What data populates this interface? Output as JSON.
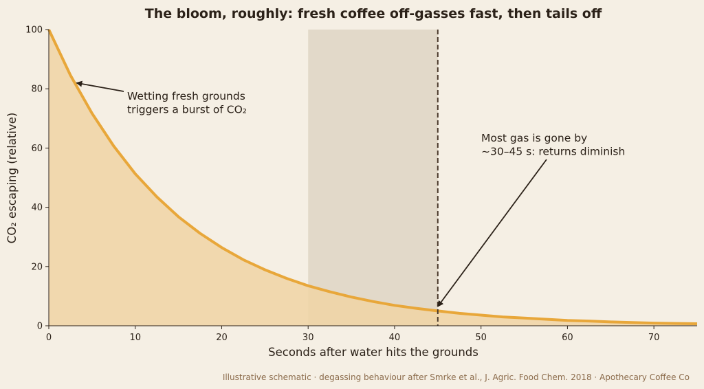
{
  "chart_data": {
    "type": "area",
    "title": "The bloom, roughly: fresh coffee off-gasses fast, then tails off",
    "xlabel": "Seconds after water hits the grounds",
    "ylabel": "CO₂ escaping (relative)",
    "xlim": [
      0,
      75
    ],
    "ylim": [
      0,
      100
    ],
    "xticks": [
      0,
      10,
      20,
      30,
      40,
      50,
      60,
      70
    ],
    "yticks": [
      0,
      20,
      40,
      60,
      80,
      100
    ],
    "grid": false,
    "series": [
      {
        "x": [
          0,
          2.5,
          5,
          7.5,
          10,
          12.5,
          15,
          17.5,
          20,
          22.5,
          25,
          27.5,
          30,
          32.5,
          35,
          37.5,
          40,
          42.5,
          45,
          47.5,
          50,
          52.5,
          55,
          57.5,
          60,
          62.5,
          65,
          67.5,
          70,
          72.5,
          75
        ],
        "y": [
          100,
          84.6,
          71.7,
          60.7,
          51.3,
          43.5,
          36.8,
          31.2,
          26.4,
          22.3,
          18.9,
          16.0,
          13.5,
          11.5,
          9.7,
          8.2,
          6.9,
          5.9,
          5.0,
          4.2,
          3.6,
          3.0,
          2.6,
          2.2,
          1.8,
          1.6,
          1.3,
          1.1,
          0.9,
          0.8,
          0.7
        ],
        "color": "#e8a73a",
        "fill": "#f0d4a4"
      }
    ],
    "shaded_region": {
      "x_start": 30,
      "x_end": 45,
      "color": "#d6c9b8"
    },
    "vertical_line": {
      "x": 45,
      "style": "dashed",
      "color": "#4a3a2c"
    },
    "annotations": [
      {
        "lines": [
          "Wetting fresh grounds",
          "triggers a burst of CO₂"
        ],
        "arrow_to": [
          3.2,
          82
        ]
      },
      {
        "lines": [
          "Most gas is gone by",
          "~30–45 s: returns diminish"
        ],
        "arrow_to": [
          45,
          6.5
        ]
      }
    ],
    "footnote": "Illustrative schematic · degassing behaviour after Smrke et al., J. Agric. Food Chem. 2018 · Apothecary Coffee Co"
  }
}
